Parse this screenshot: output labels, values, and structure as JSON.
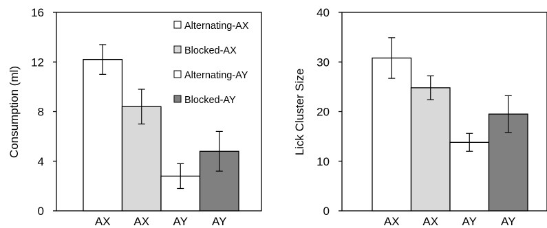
{
  "chart_data": [
    {
      "type": "bar",
      "categories": [
        "AX",
        "AX",
        "AY",
        "AY"
      ],
      "values": [
        12.2,
        8.4,
        2.8,
        4.8
      ],
      "errors": [
        1.2,
        1.4,
        1.0,
        1.6
      ],
      "bar_colors": [
        "#ffffff",
        "#d9d9d9",
        "#ffffff",
        "#808080"
      ],
      "ylabel": "Consumption (ml)",
      "ylim": [
        0,
        16
      ],
      "yticks": [
        "0",
        "4",
        "8",
        "12",
        "16"
      ],
      "legend": [
        {
          "label": "Alternating-AX",
          "color": "#ffffff"
        },
        {
          "label": "Blocked-AX",
          "color": "#d9d9d9"
        },
        {
          "label": "Alternating-AY",
          "color": "#ffffff"
        },
        {
          "label": "Blocked-AY",
          "color": "#808080"
        }
      ],
      "legend_position": "top-right",
      "grid": false
    },
    {
      "type": "bar",
      "categories": [
        "AX",
        "AX",
        "AY",
        "AY"
      ],
      "values": [
        30.8,
        24.8,
        13.8,
        19.5
      ],
      "errors": [
        4.1,
        2.4,
        1.8,
        3.7
      ],
      "bar_colors": [
        "#ffffff",
        "#d9d9d9",
        "#ffffff",
        "#808080"
      ],
      "ylabel": "Lick Cluster Size",
      "ylim": [
        0,
        40
      ],
      "yticks": [
        "0",
        "10",
        "20",
        "30",
        "40"
      ],
      "grid": false
    }
  ]
}
